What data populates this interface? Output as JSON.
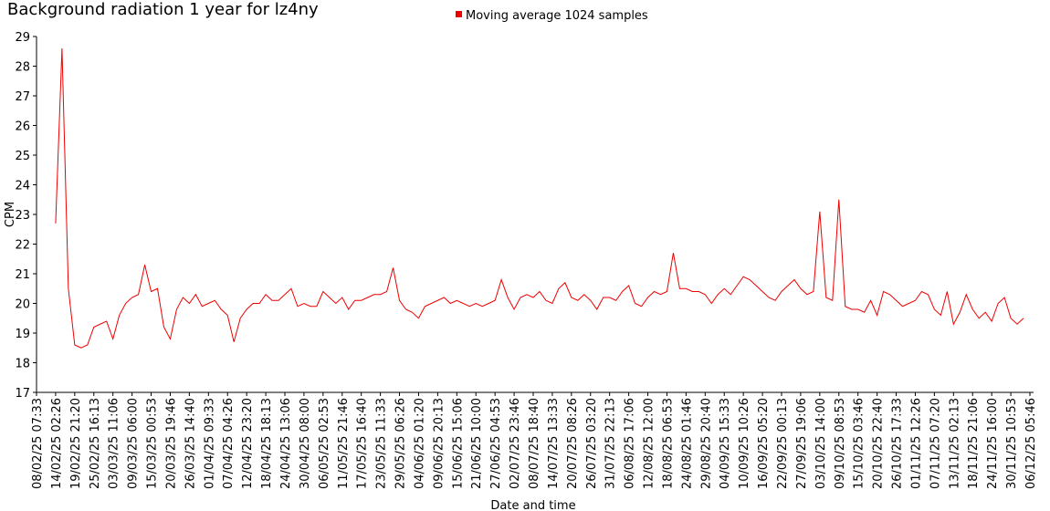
{
  "chart_data": {
    "type": "line",
    "title": "Background radiation 1 year for lz4ny",
    "x_label": "Date and time",
    "y_label": "CPM",
    "categories": [
      "08/02/25 07:33",
      null,
      null,
      "14/02/25 02:26",
      null,
      null,
      "19/02/25 21:20",
      null,
      null,
      "25/02/25 16:13",
      null,
      null,
      "03/03/25 11:06",
      null,
      null,
      "09/03/25 06:00",
      null,
      null,
      "15/03/25 00:53",
      null,
      null,
      "20/03/25 19:46",
      null,
      null,
      "26/03/25 14:40",
      null,
      null,
      "01/04/25 09:33",
      null,
      null,
      "07/04/25 04:26",
      null,
      null,
      "12/04/25 23:20",
      null,
      null,
      "18/04/25 18:13",
      null,
      null,
      "24/04/25 13:06",
      null,
      null,
      "30/04/25 08:00",
      null,
      null,
      "06/05/25 02:53",
      null,
      null,
      "11/05/25 21:46",
      null,
      null,
      "17/05/25 16:40",
      null,
      null,
      "23/05/25 11:33",
      null,
      null,
      "29/05/25 06:26",
      null,
      null,
      "04/06/25 01:20",
      null,
      null,
      "09/06/25 20:13",
      null,
      null,
      "15/06/25 15:06",
      null,
      null,
      "21/06/25 10:00",
      null,
      null,
      "27/06/25 04:53",
      null,
      null,
      "02/07/25 23:46",
      null,
      null,
      "08/07/25 18:40",
      null,
      null,
      "14/07/25 13:33",
      null,
      null,
      "20/07/25 08:26",
      null,
      null,
      "26/07/25 03:20",
      null,
      null,
      "31/07/25 22:13",
      null,
      null,
      "06/08/25 17:06",
      null,
      null,
      "12/08/25 12:00",
      null,
      null,
      "18/08/25 06:53",
      null,
      null,
      "24/08/25 01:46",
      null,
      null,
      "29/08/25 20:40",
      null,
      null,
      "04/09/25 15:33",
      null,
      null,
      "10/09/25 10:26",
      null,
      null,
      "16/09/25 05:20",
      null,
      null,
      "22/09/25 00:13",
      null,
      null,
      "27/09/25 19:06",
      null,
      null,
      "03/10/25 14:00",
      null,
      null,
      "09/10/25 08:53",
      null,
      null,
      "15/10/25 03:46",
      null,
      null,
      "20/10/25 22:40",
      null,
      null,
      "26/10/25 17:33",
      null,
      null,
      "01/11/25 12:26",
      null,
      null,
      "07/11/25 07:20",
      null,
      null,
      "13/11/25 02:13",
      null,
      null,
      "18/11/25 21:06",
      null,
      null,
      "24/11/25 16:00",
      null,
      null,
      "30/11/25 10:53",
      null,
      null,
      "06/12/25 05:46"
    ],
    "series": [
      {
        "name": "Moving average 1024 samples",
        "color": "#ee0000",
        "values": [
          null,
          null,
          null,
          22.7,
          28.6,
          20.5,
          18.6,
          18.5,
          18.6,
          19.2,
          19.3,
          19.4,
          18.8,
          19.6,
          20.0,
          20.2,
          20.3,
          21.3,
          20.4,
          20.5,
          19.2,
          18.8,
          19.8,
          20.2,
          20.0,
          20.3,
          19.9,
          20.0,
          20.1,
          19.8,
          19.6,
          18.7,
          19.5,
          19.8,
          20.0,
          20.0,
          20.3,
          20.1,
          20.1,
          20.3,
          20.5,
          19.9,
          20.0,
          19.9,
          19.9,
          20.4,
          20.2,
          20.0,
          20.2,
          19.8,
          20.1,
          20.1,
          20.2,
          20.3,
          20.3,
          20.4,
          21.2,
          20.1,
          19.8,
          19.7,
          19.5,
          19.9,
          20.0,
          20.1,
          20.2,
          20.0,
          20.1,
          20.0,
          19.9,
          20.0,
          19.9,
          20.0,
          20.1,
          20.8,
          20.2,
          19.8,
          20.2,
          20.3,
          20.2,
          20.4,
          20.1,
          20.0,
          20.5,
          20.7,
          20.2,
          20.1,
          20.3,
          20.1,
          19.8,
          20.2,
          20.2,
          20.1,
          20.4,
          20.6,
          20.0,
          19.9,
          20.2,
          20.4,
          20.3,
          20.4,
          21.7,
          20.5,
          20.5,
          20.4,
          20.4,
          20.3,
          20.0,
          20.3,
          20.5,
          20.3,
          20.6,
          20.9,
          20.8,
          20.6,
          20.4,
          20.2,
          20.1,
          20.4,
          20.6,
          20.8,
          20.5,
          20.3,
          20.4,
          23.1,
          20.2,
          20.1,
          23.5,
          19.9,
          19.8,
          19.8,
          19.7,
          20.1,
          19.6,
          20.4,
          20.3,
          20.1,
          19.9,
          20.0,
          20.1,
          20.4,
          20.3,
          19.8,
          19.6,
          20.4,
          19.3,
          19.7,
          20.3,
          19.8,
          19.5,
          19.7,
          19.4,
          20.0,
          20.2,
          19.5,
          19.3,
          19.5,
          null
        ]
      }
    ],
    "ylim": [
      17,
      29
    ],
    "yticks": [
      17,
      18,
      19,
      20,
      21,
      22,
      23,
      24,
      25,
      26,
      27,
      28,
      29
    ],
    "grid": false,
    "legend": "top"
  }
}
